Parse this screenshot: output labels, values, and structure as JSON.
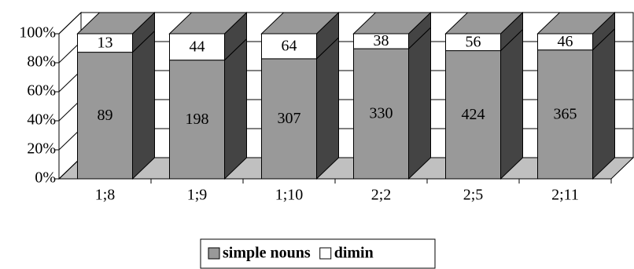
{
  "chart_data": {
    "type": "bar",
    "stacked": "percent",
    "categories": [
      "1;8",
      "1;9",
      "1;10",
      "2;2",
      "2;5",
      "2;11"
    ],
    "series": [
      {
        "name": "simple nouns",
        "color": "#999999",
        "values": [
          89,
          198,
          307,
          330,
          424,
          365
        ]
      },
      {
        "name": "dimin",
        "color": "#ffffff",
        "values": [
          13,
          44,
          64,
          38,
          56,
          46
        ]
      }
    ],
    "ylim": [
      0,
      100
    ],
    "yticks": [
      {
        "value": 0,
        "label": "0%"
      },
      {
        "value": 20,
        "label": "20%"
      },
      {
        "value": 40,
        "label": "40%"
      },
      {
        "value": 60,
        "label": "60%"
      },
      {
        "value": 80,
        "label": "80%"
      },
      {
        "value": 100,
        "label": "100%"
      }
    ],
    "grid": true,
    "legend": "bottom"
  }
}
